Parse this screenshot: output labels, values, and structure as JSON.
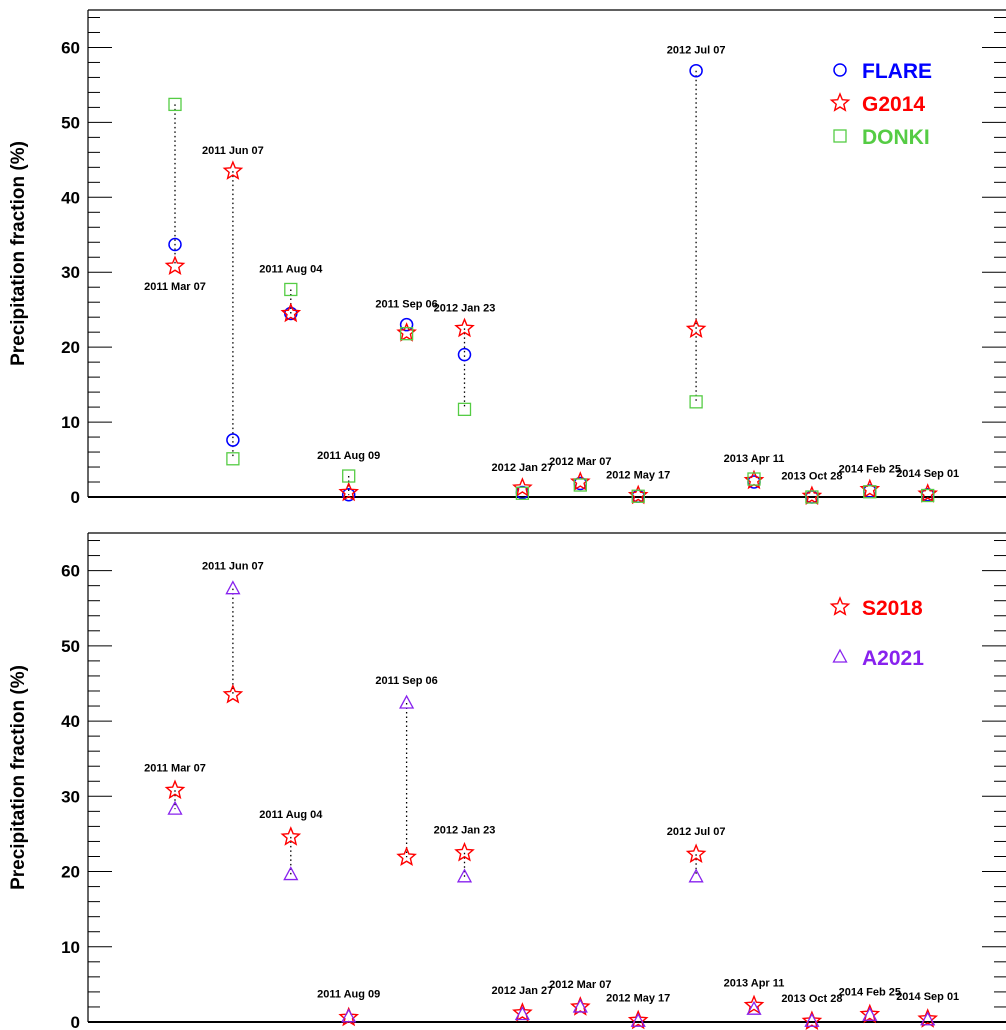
{
  "chart_data": [
    {
      "type": "scatter",
      "ylabel": "Precipitation fraction (%)",
      "ylim": [
        0,
        65
      ],
      "yticks": [
        0,
        10,
        20,
        30,
        40,
        50,
        60
      ],
      "events": [
        {
          "label": "2011 Mar 07",
          "label_pos": "below"
        },
        {
          "label": "2011 Jun 07",
          "label_pos": "above"
        },
        {
          "label": "2011 Aug 04",
          "label_pos": "above"
        },
        {
          "label": "2011 Aug 09",
          "label_pos": "above"
        },
        {
          "label": "2011 Sep 06",
          "label_pos": "above"
        },
        {
          "label": "2012 Jan 23",
          "label_pos": "above"
        },
        {
          "label": "2012 Jan 27",
          "label_pos": "above"
        },
        {
          "label": "2012 Mar 07",
          "label_pos": "above"
        },
        {
          "label": "2012 May 17",
          "label_pos": "above"
        },
        {
          "label": "2012 Jul 07",
          "label_pos": "above"
        },
        {
          "label": "2013 Apr 11",
          "label_pos": "above"
        },
        {
          "label": "2013 Oct 28",
          "label_pos": "above"
        },
        {
          "label": "2014 Feb 25",
          "label_pos": "above"
        },
        {
          "label": "2014 Sep 01",
          "label_pos": "above"
        }
      ],
      "series": [
        {
          "name": "FLARE",
          "marker": "circle",
          "color": "#0000ff",
          "values": [
            33.7,
            7.6,
            24.5,
            0.3,
            23.0,
            19.0,
            0.6,
            1.8,
            0.1,
            56.9,
            2.0,
            0.0,
            0.8,
            0.3
          ]
        },
        {
          "name": "G2014",
          "marker": "star",
          "color": "#ff0000",
          "values": [
            30.8,
            43.5,
            24.5,
            0.6,
            21.9,
            22.5,
            1.2,
            2.0,
            0.2,
            22.4,
            2.2,
            0.1,
            1.0,
            0.4
          ]
        },
        {
          "name": "DONKI",
          "marker": "square",
          "color": "#55cc44",
          "values": [
            52.4,
            5.1,
            27.7,
            2.8,
            21.8,
            11.7,
            0.5,
            1.6,
            0.1,
            12.7,
            2.4,
            0.0,
            0.7,
            0.2
          ]
        }
      ],
      "legend": "top-right"
    },
    {
      "type": "scatter",
      "ylabel": "Precipitation fraction (%)",
      "ylim": [
        0,
        65
      ],
      "yticks": [
        0,
        10,
        20,
        30,
        40,
        50,
        60
      ],
      "events": [
        {
          "label": "2011 Mar 07",
          "label_pos": "above"
        },
        {
          "label": "2011 Jun 07",
          "label_pos": "above"
        },
        {
          "label": "2011 Aug 04",
          "label_pos": "above"
        },
        {
          "label": "2011 Aug 09",
          "label_pos": "above"
        },
        {
          "label": "2011 Sep 06",
          "label_pos": "above"
        },
        {
          "label": "2012 Jan 23",
          "label_pos": "above"
        },
        {
          "label": "2012 Jan 27",
          "label_pos": "above"
        },
        {
          "label": "2012 Mar 07",
          "label_pos": "above"
        },
        {
          "label": "2012 May 17",
          "label_pos": "above"
        },
        {
          "label": "2012 Jul 07",
          "label_pos": "above"
        },
        {
          "label": "2013 Apr 11",
          "label_pos": "above"
        },
        {
          "label": "2013 Oct 28",
          "label_pos": "above"
        },
        {
          "label": "2014 Feb 25",
          "label_pos": "above"
        },
        {
          "label": "2014 Sep 01",
          "label_pos": "above"
        }
      ],
      "series": [
        {
          "name": "S2018",
          "marker": "star",
          "color": "#ff0000",
          "values": [
            30.8,
            43.5,
            24.6,
            0.6,
            21.9,
            22.5,
            1.2,
            2.0,
            0.2,
            22.3,
            2.2,
            0.1,
            1.0,
            0.4
          ]
        },
        {
          "name": "A2021",
          "marker": "triangle",
          "color": "#8822ee",
          "values": [
            28.3,
            57.6,
            19.6,
            0.7,
            42.4,
            19.3,
            1.0,
            2.0,
            0.1,
            19.3,
            1.7,
            0.1,
            0.9,
            0.3
          ]
        }
      ],
      "legend": "top-right"
    }
  ]
}
